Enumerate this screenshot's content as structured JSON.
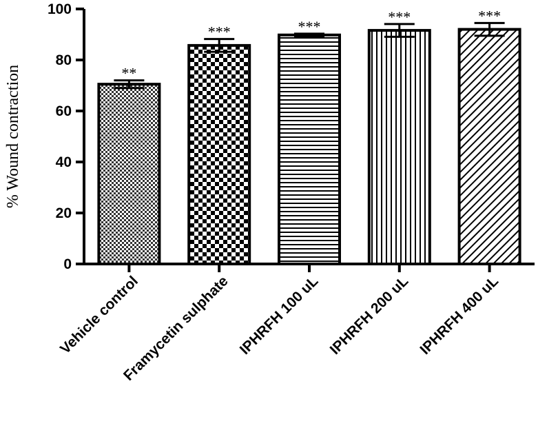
{
  "chart_data": {
    "type": "bar",
    "title": "",
    "xlabel": "",
    "ylabel": "% Wound contraction",
    "ylim": [
      0,
      100
    ],
    "yticks": [
      "0",
      "20",
      "40",
      "60",
      "80",
      "100"
    ],
    "grid": false,
    "legend": "none",
    "categories": [
      "Vehicle control",
      "Framycetin sulphate",
      "IPHRFH 100 uL",
      "IPHRFH 200 uL",
      "IPHRFH 400 uL"
    ],
    "values": [
      70.5,
      85.7,
      89.8,
      91.6,
      92.0
    ],
    "errors": [
      1.5,
      2.5,
      0.5,
      2.5,
      2.5
    ],
    "significance": [
      "**",
      "***",
      "***",
      "***",
      "***"
    ]
  }
}
